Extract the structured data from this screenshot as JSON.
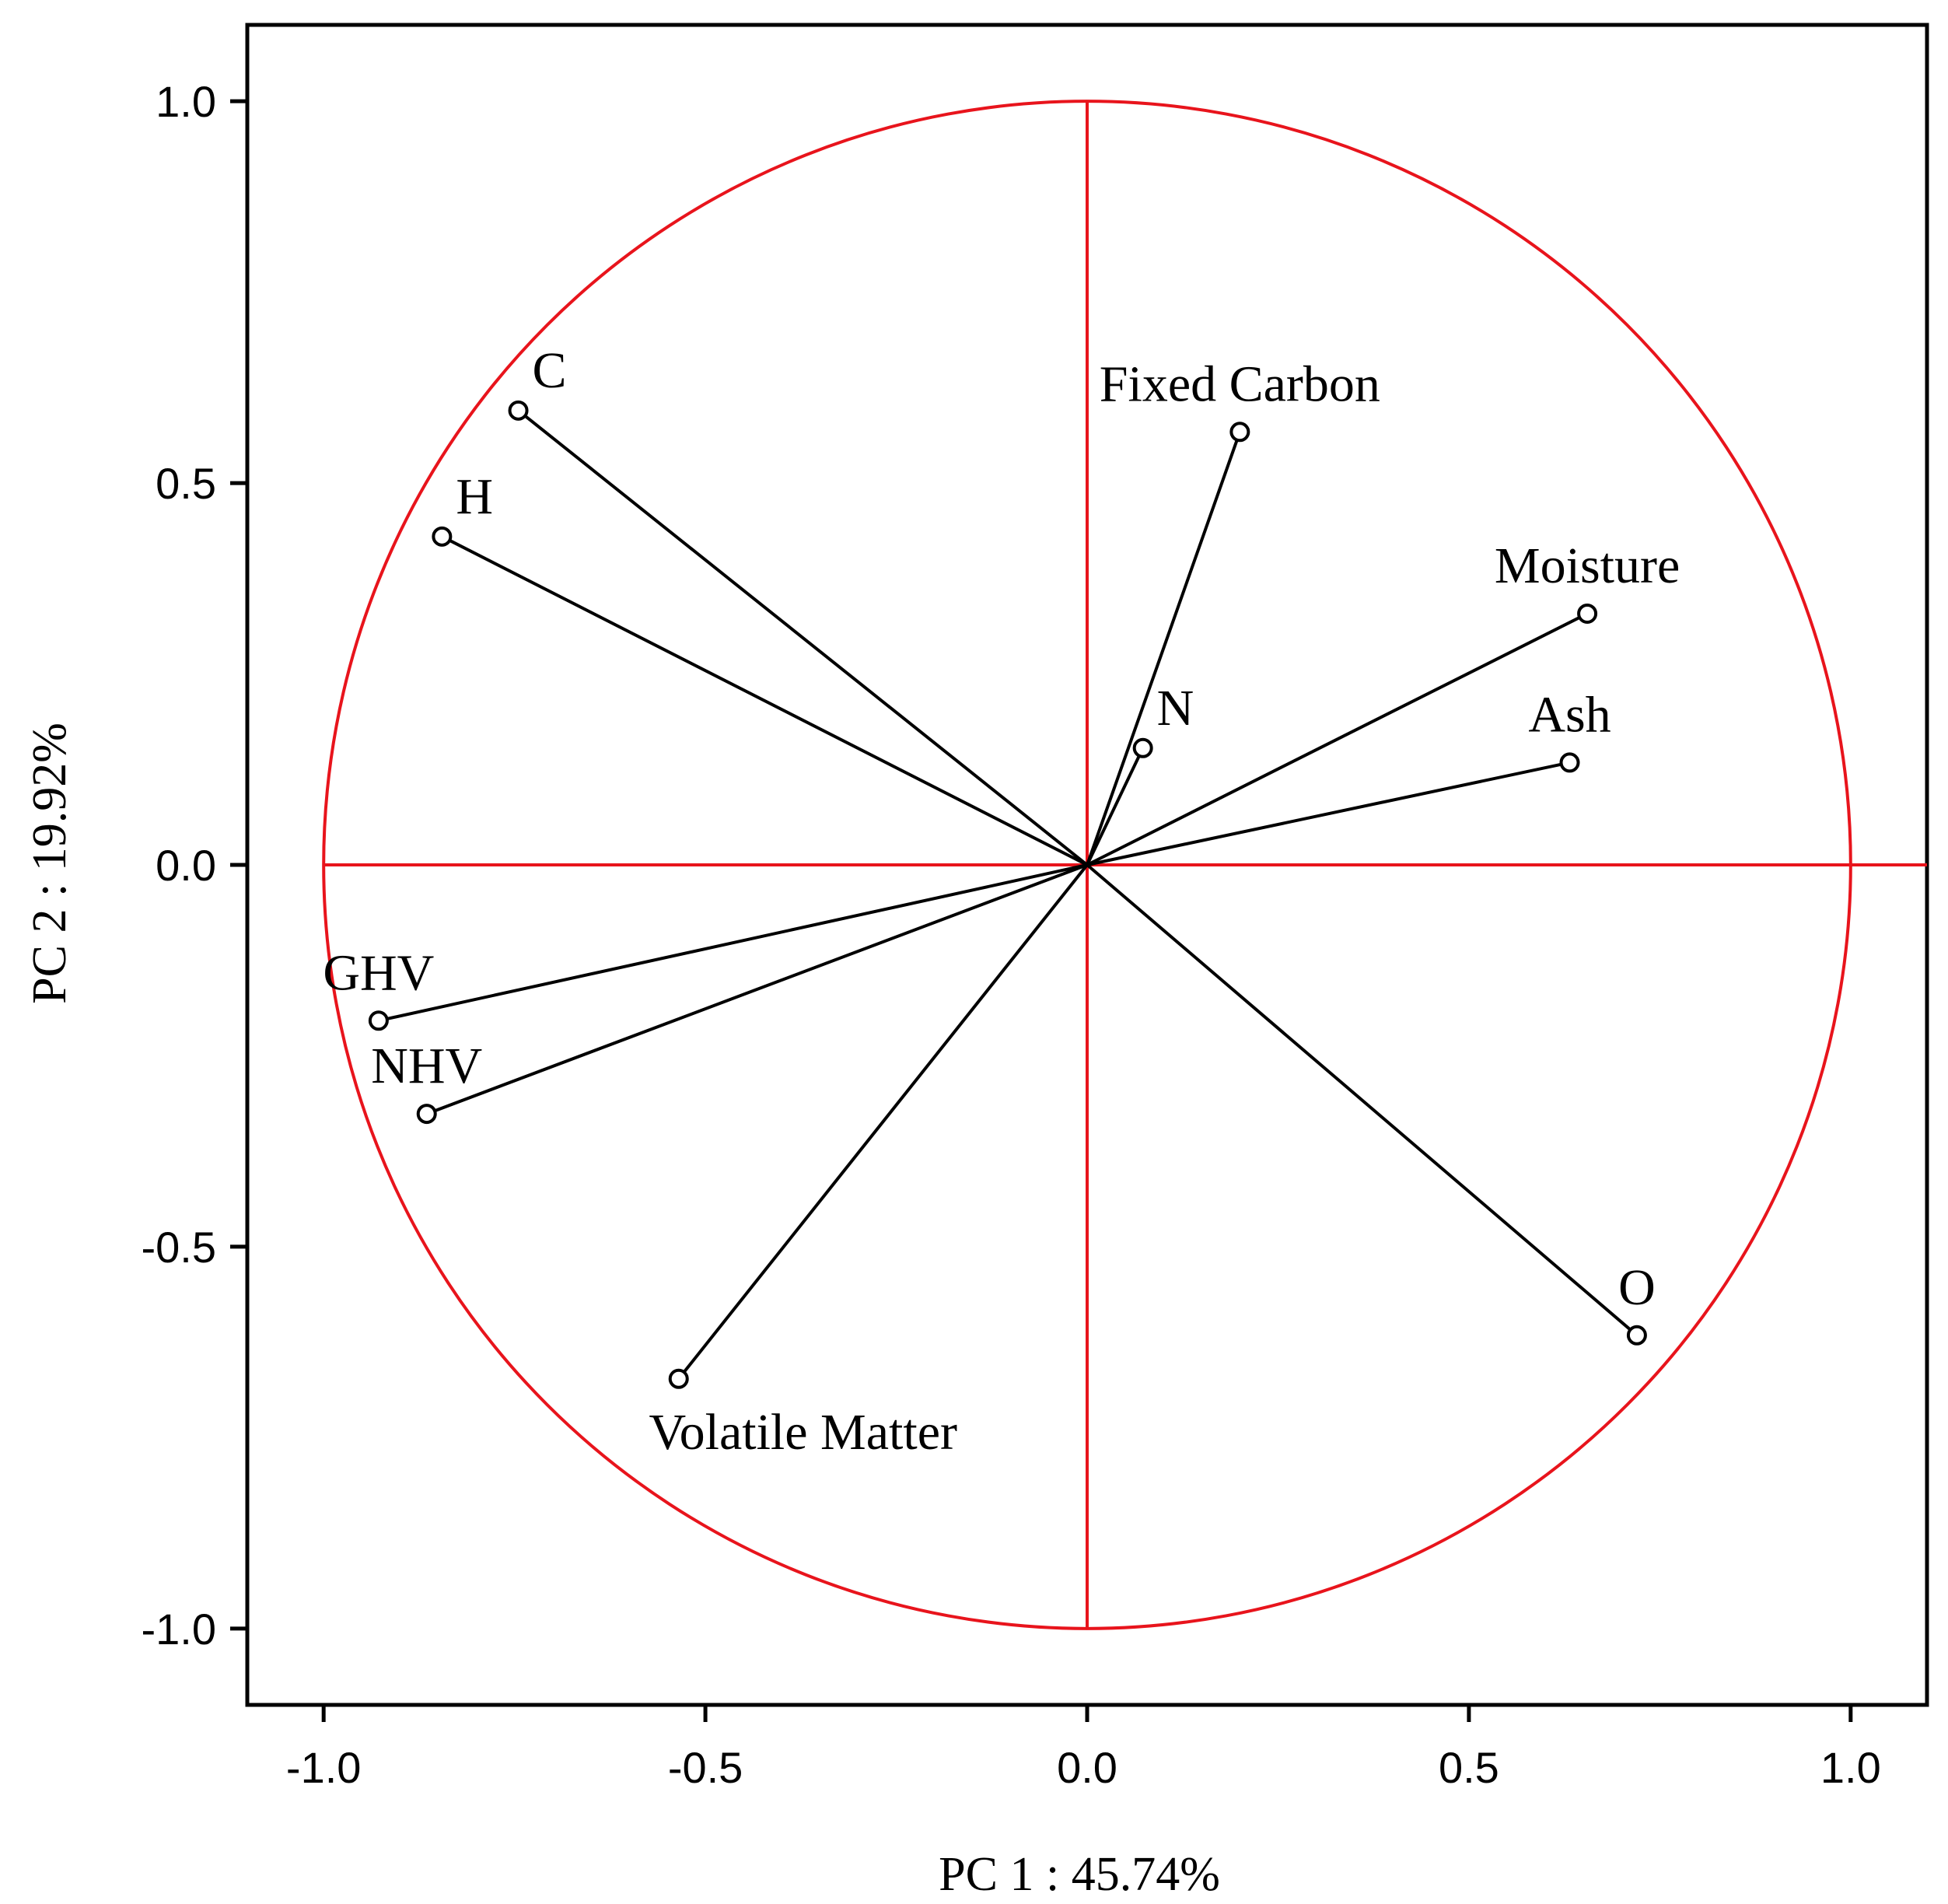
{
  "chart_data": {
    "type": "scatter",
    "subtype": "pca-loading-plot",
    "xlabel": "PC 1 : 45.74%",
    "ylabel": "PC 2 : 19.92%",
    "xlim": [
      -1.1,
      1.1
    ],
    "ylim": [
      -1.1,
      1.1
    ],
    "xticks": [
      -1.0,
      -0.5,
      0.0,
      0.5,
      1.0
    ],
    "yticks": [
      -1.0,
      -0.5,
      0.0,
      0.5,
      1.0
    ],
    "xtick_labels": [
      "-1.0",
      "-0.5",
      "0.0",
      "0.5",
      "1.0"
    ],
    "ytick_labels": [
      "-1.0",
      "-0.5",
      "0.0",
      "0.5",
      "1.0"
    ],
    "correlation_circle_radius": 1.0,
    "reference_color": "#e8141c",
    "vector_color": "#000000",
    "variables": [
      {
        "name": "C",
        "x": -0.745,
        "y": 0.595,
        "label_pos": "above-right"
      },
      {
        "name": "H",
        "x": -0.845,
        "y": 0.43,
        "label_pos": "above-right"
      },
      {
        "name": "Fixed Carbon",
        "x": 0.2,
        "y": 0.567,
        "label_pos": "above"
      },
      {
        "name": "Moisture",
        "x": 0.655,
        "y": 0.329,
        "label_pos": "above"
      },
      {
        "name": "N",
        "x": 0.073,
        "y": 0.153,
        "label_pos": "above-right"
      },
      {
        "name": "Ash",
        "x": 0.632,
        "y": 0.134,
        "label_pos": "above"
      },
      {
        "name": "GHV",
        "x": -0.928,
        "y": -0.204,
        "label_pos": "above"
      },
      {
        "name": "NHV",
        "x": -0.865,
        "y": -0.326,
        "label_pos": "above"
      },
      {
        "name": "Volatile Matter",
        "x": -0.535,
        "y": -0.673,
        "label_pos": "below-right"
      },
      {
        "name": "O",
        "x": 0.72,
        "y": -0.616,
        "label_pos": "above"
      }
    ]
  }
}
